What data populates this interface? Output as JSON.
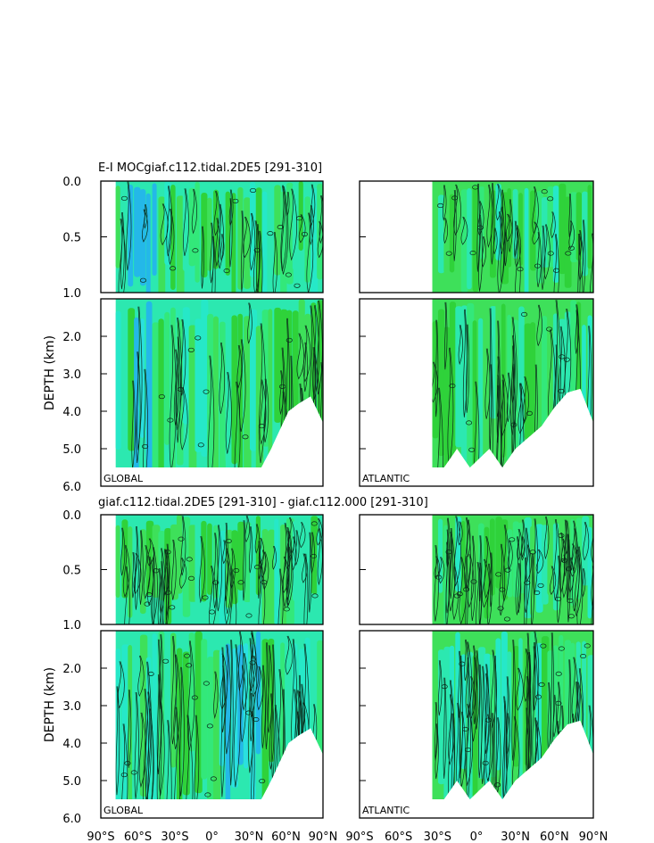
{
  "figure": {
    "title_top": "E-I MOCgiaf.c112.tidal.2DE5 [291-310]",
    "title_bottom": "giaf.c112.tidal.2DE5 [291-310] - giaf.c112.000 [291-310]",
    "ylabel": "DEPTH (km)",
    "colors": {
      "green_dark": "#2fd23a",
      "green": "#3ee05a",
      "green_mid": "#33e87a",
      "teal": "#2ce8b0",
      "cyan": "#26e8c8",
      "cyan_light": "#2ae0e0",
      "blue": "#24b8e8",
      "contour": "#0a2a1a"
    }
  },
  "chart_data": [
    {
      "type": "heatmap",
      "id": "top-global",
      "title": "E-I MOCgiaf.c112.tidal.2DE5 [291-310]",
      "region_label": "GLOBAL",
      "ylabel": "DEPTH (km)",
      "xlim": [
        -90,
        90
      ],
      "ylim_upper": [
        0.0,
        1.0
      ],
      "ylim_lower": [
        1.0,
        6.0
      ],
      "yticks_upper": [
        "0.0",
        "0.5",
        "1.0"
      ],
      "yticks_lower": [
        "2.0",
        "3.0",
        "4.0",
        "5.0",
        "6.0"
      ],
      "data_lat_range": [
        -78,
        90
      ],
      "bottom_depth_profile": [
        [
          -78,
          5.5
        ],
        [
          -70,
          5.5
        ],
        [
          -40,
          5.5
        ],
        [
          0,
          5.5
        ],
        [
          40,
          5.5
        ],
        [
          48,
          5.0
        ],
        [
          55,
          4.5
        ],
        [
          62,
          4.0
        ],
        [
          70,
          3.8
        ],
        [
          80,
          3.6
        ],
        [
          90,
          4.3
        ]
      ]
    },
    {
      "type": "heatmap",
      "id": "top-atlantic",
      "region_label": "ATLANTIC",
      "xlim": [
        -90,
        90
      ],
      "ylim_upper": [
        0.0,
        1.0
      ],
      "ylim_lower": [
        1.0,
        6.0
      ],
      "data_lat_range": [
        -34,
        90
      ],
      "bottom_depth_profile": [
        [
          -34,
          5.5
        ],
        [
          -25,
          5.5
        ],
        [
          -15,
          5.0
        ],
        [
          -5,
          5.5
        ],
        [
          10,
          5.0
        ],
        [
          20,
          5.5
        ],
        [
          30,
          5.0
        ],
        [
          40,
          4.7
        ],
        [
          50,
          4.4
        ],
        [
          60,
          3.9
        ],
        [
          70,
          3.5
        ],
        [
          80,
          3.4
        ],
        [
          90,
          4.3
        ]
      ]
    },
    {
      "type": "heatmap",
      "id": "bottom-global",
      "title": "giaf.c112.tidal.2DE5 [291-310] - giaf.c112.000 [291-310]",
      "region_label": "GLOBAL",
      "ylabel": "DEPTH (km)",
      "xlim": [
        -90,
        90
      ],
      "ylim_upper": [
        0.0,
        1.0
      ],
      "ylim_lower": [
        1.0,
        6.0
      ],
      "yticks_upper": [
        "0.0",
        "0.5",
        "1.0"
      ],
      "yticks_lower": [
        "2.0",
        "3.0",
        "4.0",
        "5.0",
        "6.0"
      ],
      "data_lat_range": [
        -78,
        90
      ],
      "bottom_depth_profile": [
        [
          -78,
          5.5
        ],
        [
          -70,
          5.5
        ],
        [
          -40,
          5.5
        ],
        [
          0,
          5.5
        ],
        [
          40,
          5.5
        ],
        [
          48,
          5.0
        ],
        [
          55,
          4.5
        ],
        [
          62,
          4.0
        ],
        [
          70,
          3.8
        ],
        [
          80,
          3.6
        ],
        [
          90,
          4.3
        ]
      ]
    },
    {
      "type": "heatmap",
      "id": "bottom-atlantic",
      "region_label": "ATLANTIC",
      "xlim": [
        -90,
        90
      ],
      "ylim_upper": [
        0.0,
        1.0
      ],
      "ylim_lower": [
        1.0,
        6.0
      ],
      "data_lat_range": [
        -34,
        90
      ],
      "bottom_depth_profile": [
        [
          -34,
          5.5
        ],
        [
          -25,
          5.5
        ],
        [
          -15,
          5.0
        ],
        [
          -5,
          5.5
        ],
        [
          10,
          5.0
        ],
        [
          20,
          5.5
        ],
        [
          30,
          5.0
        ],
        [
          40,
          4.7
        ],
        [
          50,
          4.4
        ],
        [
          60,
          3.9
        ],
        [
          70,
          3.5
        ],
        [
          80,
          3.4
        ],
        [
          90,
          4.3
        ]
      ]
    }
  ],
  "xticks": [
    "90°S",
    "60°S",
    "30°S",
    "0°",
    "30°N",
    "60°N",
    "90°N"
  ],
  "xtick_values": [
    -90,
    -60,
    -30,
    0,
    30,
    60,
    90
  ]
}
